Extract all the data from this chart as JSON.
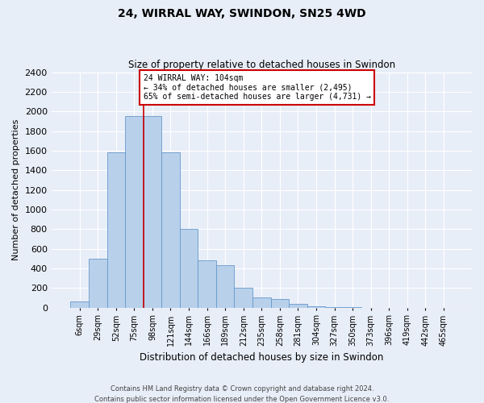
{
  "title": "24, WIRRAL WAY, SWINDON, SN25 4WD",
  "subtitle": "Size of property relative to detached houses in Swindon",
  "xlabel": "Distribution of detached houses by size in Swindon",
  "ylabel": "Number of detached properties",
  "footer_line1": "Contains HM Land Registry data © Crown copyright and database right 2024.",
  "footer_line2": "Contains public sector information licensed under the Open Government Licence v3.0.",
  "bar_labels": [
    "6sqm",
    "29sqm",
    "52sqm",
    "75sqm",
    "98sqm",
    "121sqm",
    "144sqm",
    "166sqm",
    "189sqm",
    "212sqm",
    "235sqm",
    "258sqm",
    "281sqm",
    "304sqm",
    "327sqm",
    "350sqm",
    "373sqm",
    "396sqm",
    "419sqm",
    "442sqm",
    "465sqm"
  ],
  "bar_values": [
    60,
    500,
    1580,
    1950,
    1950,
    1580,
    800,
    480,
    430,
    200,
    100,
    90,
    35,
    10,
    5,
    2,
    1,
    1,
    1,
    1,
    1
  ],
  "bar_color": "#b8d0ea",
  "bar_edge_color": "#6699cc",
  "background_color": "#e8eef8",
  "grid_color": "#ffffff",
  "marker_bar_index": 4,
  "marker_color": "#cc0000",
  "annotation_line1": "24 WIRRAL WAY: 104sqm",
  "annotation_line2": "← 34% of detached houses are smaller (2,495)",
  "annotation_line3": "65% of semi-detached houses are larger (4,731) →",
  "annotation_box_color": "#ffffff",
  "annotation_box_edge": "#cc0000",
  "ylim": [
    0,
    2400
  ],
  "yticks": [
    0,
    200,
    400,
    600,
    800,
    1000,
    1200,
    1400,
    1600,
    1800,
    2000,
    2200,
    2400
  ]
}
